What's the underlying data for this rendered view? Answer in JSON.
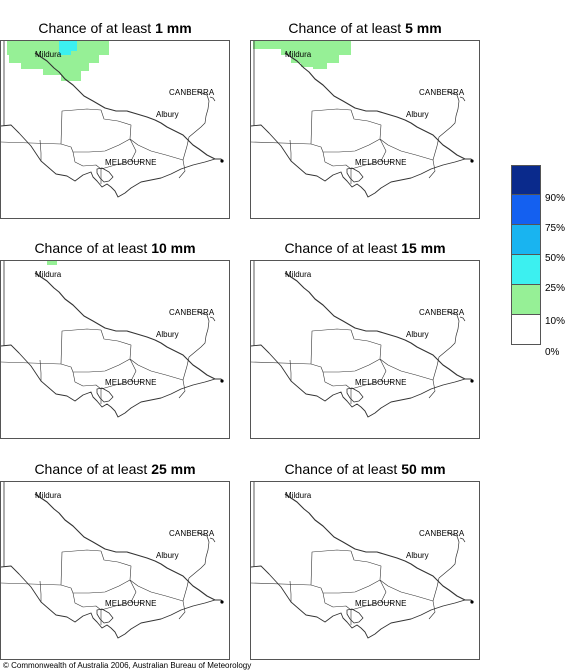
{
  "panels": [
    {
      "prefix": "Chance of at least ",
      "amount": "1 mm"
    },
    {
      "prefix": "Chance of at least ",
      "amount": "5 mm"
    },
    {
      "prefix": "Chance of at least ",
      "amount": "10 mm"
    },
    {
      "prefix": "Chance of at least ",
      "amount": "15 mm"
    },
    {
      "prefix": "Chance of at least ",
      "amount": "25 mm"
    },
    {
      "prefix": "Chance of at least ",
      "amount": "50 mm"
    }
  ],
  "places": {
    "mildura": "Mildura",
    "canberra": "CANBERRA",
    "albury": "Albury",
    "melbourne": "MELBOURNE"
  },
  "legend": {
    "colors": [
      "#0a2a8c",
      "#1460f0",
      "#19b4f0",
      "#3cf0f0",
      "#96f096",
      "#ffffff"
    ],
    "labels": [
      "90%",
      "75%",
      "50%",
      "25%",
      "10%",
      "0%"
    ]
  },
  "credit": "© Commonwealth of Australia 2006, Australian Bureau of Meteorology"
}
